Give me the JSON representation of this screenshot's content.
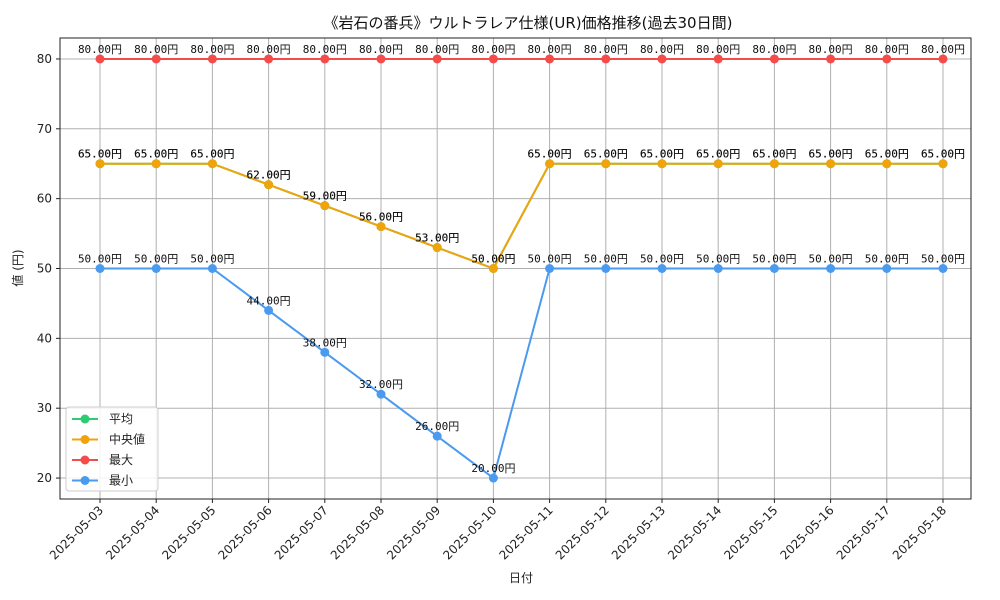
{
  "chart_data": {
    "type": "line",
    "title": "《岩石の番兵》ウルトラレア仕様(UR)価格推移(過去30日間)",
    "xlabel": "日付",
    "ylabel": "値 (円)",
    "ylim": [
      17,
      83
    ],
    "yticks": [
      20,
      30,
      40,
      50,
      60,
      70,
      80
    ],
    "grid": true,
    "legend_position": "lower-left",
    "categories": [
      "2025-05-03",
      "2025-05-04",
      "2025-05-05",
      "2025-05-06",
      "2025-05-07",
      "2025-05-08",
      "2025-05-09",
      "2025-05-10",
      "2025-05-11",
      "2025-05-12",
      "2025-05-13",
      "2025-05-14",
      "2025-05-15",
      "2025-05-16",
      "2025-05-17",
      "2025-05-18"
    ],
    "series": [
      {
        "name": "平均",
        "color": "#2ecc71",
        "values": [
          65,
          65,
          65,
          62,
          59,
          56,
          53,
          50,
          65,
          65,
          65,
          65,
          65,
          65,
          65,
          65
        ],
        "labels": [
          "65.00円",
          "65.00円",
          "65.00円",
          "62.00円",
          "59.00円",
          "56.00円",
          "53.00円",
          "50.00円",
          "65.00円",
          "65.00円",
          "65.00円",
          "65.00円",
          "65.00円",
          "65.00円",
          "65.00円",
          "65.00円"
        ]
      },
      {
        "name": "中央値",
        "color": "#f0a30a",
        "values": [
          65,
          65,
          65,
          62,
          59,
          56,
          53,
          50,
          65,
          65,
          65,
          65,
          65,
          65,
          65,
          65
        ],
        "labels": [
          "65.00円",
          "65.00円",
          "65.00円",
          "62.00円",
          "59.00円",
          "56.00円",
          "53.00円",
          "50.00円",
          "65.00円",
          "65.00円",
          "65.00円",
          "65.00円",
          "65.00円",
          "65.00円",
          "65.00円",
          "65.00円"
        ]
      },
      {
        "name": "最大",
        "color": "#f44b4b",
        "values": [
          80,
          80,
          80,
          80,
          80,
          80,
          80,
          80,
          80,
          80,
          80,
          80,
          80,
          80,
          80,
          80
        ],
        "labels": [
          "80.00円",
          "80.00円",
          "80.00円",
          "80.00円",
          "80.00円",
          "80.00円",
          "80.00円",
          "80.00円",
          "80.00円",
          "80.00円",
          "80.00円",
          "80.00円",
          "80.00円",
          "80.00円",
          "80.00円",
          "80.00円"
        ]
      },
      {
        "name": "最小",
        "color": "#4a9af0",
        "values": [
          50,
          50,
          50,
          44,
          38,
          32,
          26,
          20,
          50,
          50,
          50,
          50,
          50,
          50,
          50,
          50
        ],
        "labels": [
          "50.00円",
          "50.00円",
          "50.00円",
          "44.00円",
          "38.00円",
          "32.00円",
          "26.00円",
          "20.00円",
          "50.00円",
          "50.00円",
          "50.00円",
          "50.00円",
          "50.00円",
          "50.00円",
          "50.00円",
          "50.00円"
        ]
      }
    ]
  }
}
